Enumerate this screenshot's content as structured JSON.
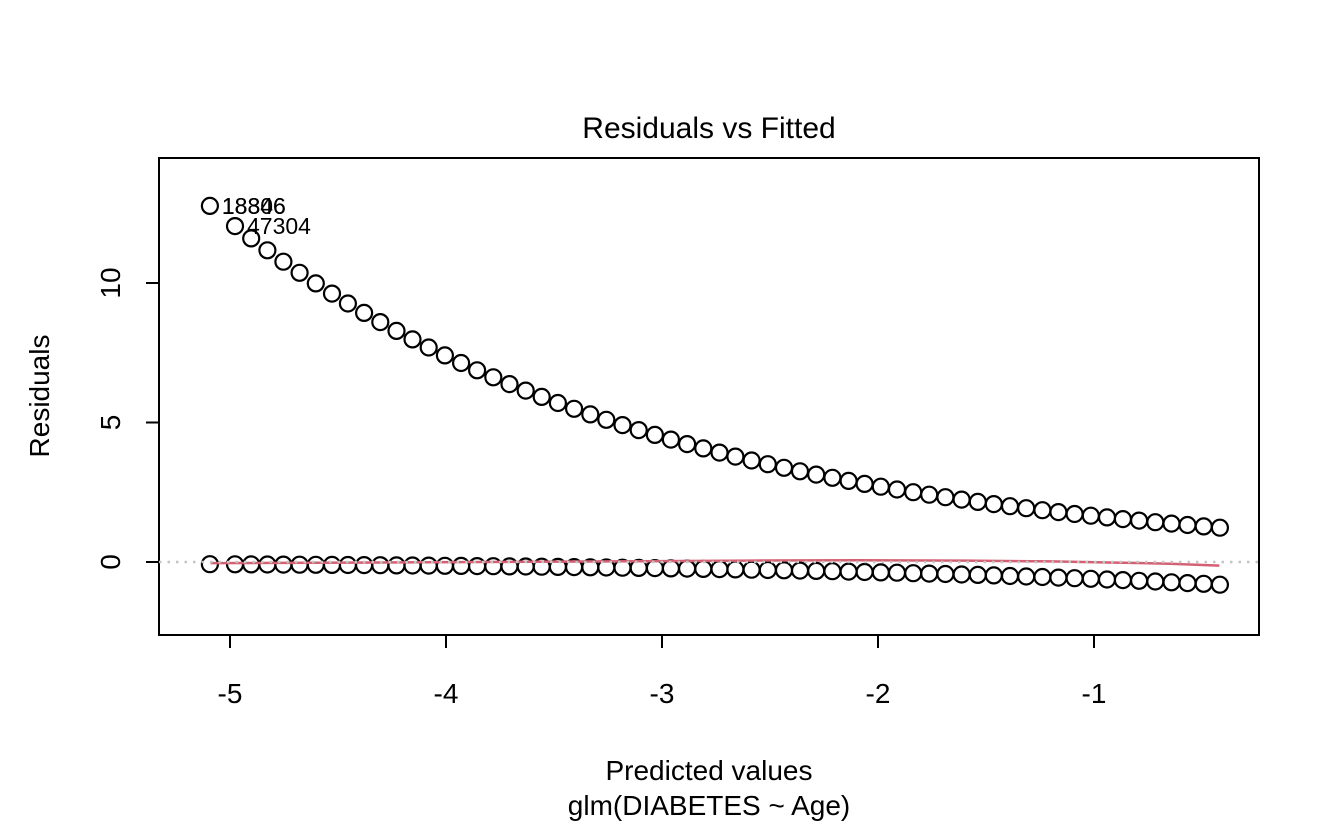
{
  "chart_data": {
    "type": "scatter",
    "title": "Residuals vs Fitted",
    "xlabel": "Predicted values",
    "xlabel_sub": "glm(DIABETES ~ Age)",
    "ylabel": "Residuals",
    "x_ticks": [
      -5,
      -4,
      -3,
      -2,
      -1
    ],
    "y_ticks": [
      0,
      5,
      10
    ],
    "xlim": [
      -5.33,
      -0.24
    ],
    "ylim": [
      -2.62,
      14.48
    ],
    "grid": false,
    "legend": "none",
    "point_color": "#000000",
    "x": [
      -5.093,
      -4.977,
      -4.902,
      -4.827,
      -4.753,
      -4.678,
      -4.603,
      -4.528,
      -4.454,
      -4.379,
      -4.304,
      -4.229,
      -4.155,
      -4.08,
      -4.005,
      -3.93,
      -3.856,
      -3.781,
      -3.706,
      -3.631,
      -3.557,
      -3.482,
      -3.407,
      -3.332,
      -3.258,
      -3.183,
      -3.108,
      -3.033,
      -2.959,
      -2.884,
      -2.809,
      -2.734,
      -2.66,
      -2.585,
      -2.51,
      -2.435,
      -2.361,
      -2.286,
      -2.211,
      -2.136,
      -2.062,
      -1.987,
      -1.912,
      -1.837,
      -1.763,
      -1.688,
      -1.613,
      -1.538,
      -1.464,
      -1.389,
      -1.314,
      -1.239,
      -1.165,
      -1.09,
      -1.015,
      -0.94,
      -0.866,
      -0.791,
      -0.716,
      -0.641,
      -0.567,
      -0.492,
      -0.417
    ],
    "series": [
      {
        "name": "residuals-outcome-1",
        "marker": "open-circle",
        "color": "#000000",
        "y": [
          12.762,
          12.04,
          11.598,
          11.172,
          10.762,
          10.367,
          9.987,
          9.62,
          9.267,
          8.927,
          8.599,
          8.284,
          7.98,
          7.687,
          7.405,
          7.133,
          6.871,
          6.619,
          6.376,
          6.142,
          5.916,
          5.699,
          5.49,
          5.289,
          5.095,
          4.908,
          4.727,
          4.554,
          4.387,
          4.226,
          4.071,
          3.921,
          3.777,
          3.639,
          3.505,
          3.376,
          3.252,
          3.133,
          3.018,
          2.907,
          2.801,
          2.698,
          2.599,
          2.503,
          2.411,
          2.323,
          2.238,
          2.155,
          2.076,
          2.0,
          1.927,
          1.856,
          1.788,
          1.722,
          1.659,
          1.598,
          1.539,
          1.483,
          1.428,
          1.376,
          1.325,
          1.277,
          1.23
        ]
      },
      {
        "name": "residuals-outcome-0",
        "marker": "open-circle",
        "color": "#000000",
        "y": [
          -0.078,
          -0.083,
          -0.086,
          -0.09,
          -0.093,
          -0.096,
          -0.1,
          -0.104,
          -0.108,
          -0.112,
          -0.116,
          -0.121,
          -0.125,
          -0.13,
          -0.135,
          -0.14,
          -0.146,
          -0.151,
          -0.157,
          -0.163,
          -0.169,
          -0.175,
          -0.182,
          -0.189,
          -0.196,
          -0.204,
          -0.212,
          -0.22,
          -0.228,
          -0.237,
          -0.246,
          -0.255,
          -0.265,
          -0.275,
          -0.285,
          -0.296,
          -0.308,
          -0.319,
          -0.331,
          -0.344,
          -0.357,
          -0.371,
          -0.385,
          -0.4,
          -0.415,
          -0.43,
          -0.447,
          -0.464,
          -0.482,
          -0.5,
          -0.519,
          -0.539,
          -0.559,
          -0.581,
          -0.603,
          -0.626,
          -0.65,
          -0.674,
          -0.7,
          -0.727,
          -0.755,
          -0.783,
          -0.813
        ]
      }
    ],
    "smoother": {
      "name": "lowess-smoother",
      "color": "#d46073",
      "x": [
        -5.09,
        -4.6,
        -4.1,
        -3.6,
        -3.1,
        -2.6,
        -2.1,
        -1.6,
        -1.2,
        -0.9,
        -0.65,
        -0.42
      ],
      "y": [
        -0.04,
        -0.03,
        -0.01,
        0.01,
        0.03,
        0.05,
        0.06,
        0.05,
        0.02,
        -0.02,
        -0.06,
        -0.13
      ]
    },
    "zero_line": {
      "y": 0,
      "style": "dotted",
      "color": "#c3c3c3"
    },
    "point_labels": [
      {
        "text": "18306",
        "x": -5.093,
        "y": 12.762
      },
      {
        "text": "18846",
        "x": -5.093,
        "y": 12.762
      },
      {
        "text": "47304",
        "x": -4.977,
        "y": 12.04
      }
    ]
  }
}
